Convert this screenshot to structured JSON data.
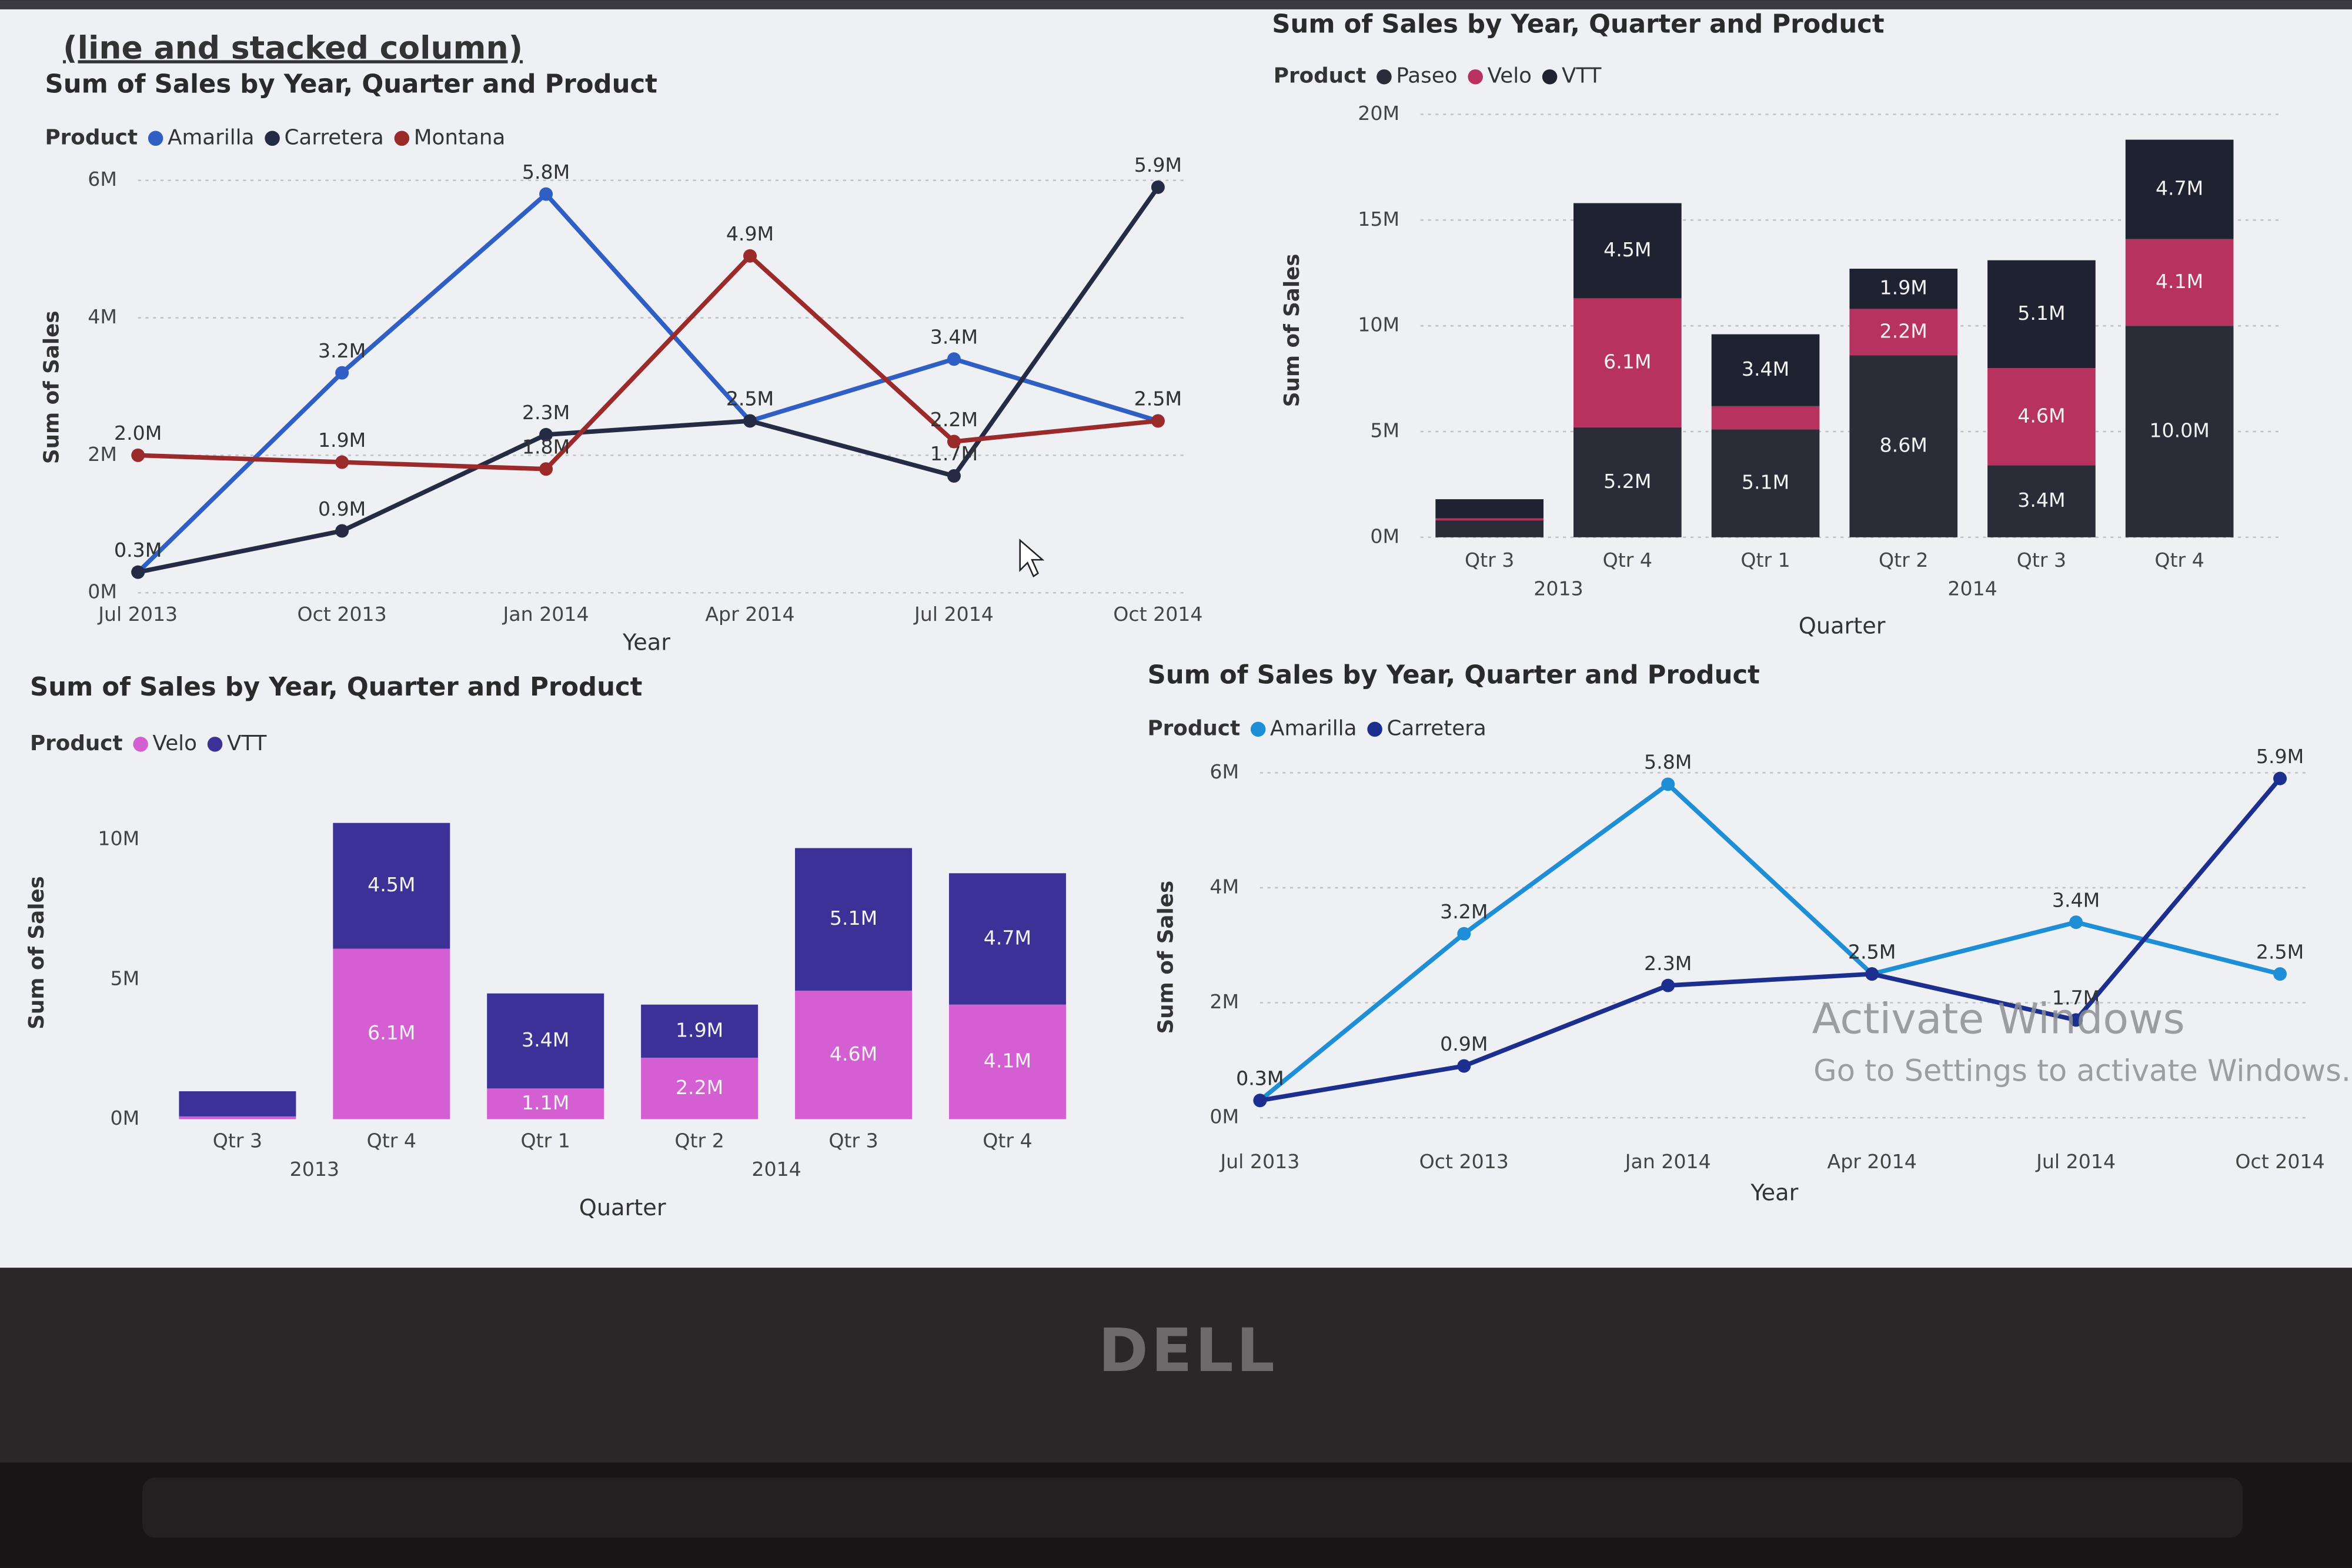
{
  "chart_data": [
    {
      "type": "line",
      "heading": "(line and stacked column)",
      "title": "Sum of Sales by Year, Quarter and Product",
      "legend_title": "Product",
      "y_axis_label": "Sum of Sales",
      "x_axis_label": "Year",
      "categories": [
        "Jul 2013",
        "Oct 2013",
        "Jan 2014",
        "Apr 2014",
        "Jul 2014",
        "Oct 2014"
      ],
      "series": [
        {
          "name": "Amarilla",
          "color": "#2f5fc4",
          "values": [
            0.3,
            3.2,
            5.8,
            2.5,
            3.4,
            2.5
          ],
          "value_labels": [
            "0.3M",
            "3.2M",
            "5.8M",
            "2.5M",
            "3.4M",
            "2.5M"
          ]
        },
        {
          "name": "Carretera",
          "color": "#262b45",
          "values": [
            0.3,
            0.9,
            2.3,
            2.5,
            1.7,
            5.9
          ],
          "value_labels": [
            "0.3M",
            "0.9M",
            "2.3M",
            "2.5M",
            "1.7M",
            "5.9M"
          ]
        },
        {
          "name": "Montana",
          "color": "#9b2a2a",
          "values": [
            2.0,
            1.9,
            1.8,
            4.9,
            2.2,
            2.5
          ],
          "value_labels": [
            "2.0M",
            "1.9M",
            "1.8M",
            "4.9M",
            "2.2M",
            "2.5M"
          ]
        }
      ],
      "ylim": [
        0,
        6
      ],
      "yticks": [
        {
          "value": 0,
          "label": "0M"
        },
        {
          "value": 2,
          "label": "2M"
        },
        {
          "value": 4,
          "label": "4M"
        },
        {
          "value": 6,
          "label": "6M"
        }
      ],
      "grid": true
    },
    {
      "type": "bar",
      "title": "Sum of Sales by Year, Quarter and Product",
      "legend_title": "Product",
      "y_axis_label": "Sum of Sales",
      "x_axis_label": "Quarter",
      "categories": [
        "Qtr 3",
        "Qtr 4",
        "Qtr 1",
        "Qtr 2",
        "Qtr 3",
        "Qtr 4"
      ],
      "category_groups": [
        "2013",
        "2013",
        "2014",
        "2014",
        "2014",
        "2014"
      ],
      "series": [
        {
          "name": "Paseo",
          "color": "#2a2c38",
          "values": [
            0.8,
            5.2,
            5.1,
            8.6,
            3.4,
            10.0
          ],
          "value_labels": [
            null,
            "5.2M",
            "5.1M",
            "8.6M",
            "3.4M",
            "10.0M"
          ]
        },
        {
          "name": "Velo",
          "color": "#b8325f",
          "values": [
            0.1,
            6.1,
            1.1,
            2.2,
            4.6,
            4.1
          ],
          "value_labels": [
            null,
            "6.1M",
            null,
            "2.2M",
            "4.6M",
            "4.1M"
          ]
        },
        {
          "name": "VTT",
          "color": "#1f2230",
          "values": [
            0.9,
            4.5,
            3.4,
            1.9,
            5.1,
            4.7
          ],
          "value_labels": [
            null,
            "4.5M",
            "3.4M",
            "1.9M",
            "5.1M",
            "4.7M"
          ]
        }
      ],
      "ylim": [
        0,
        20
      ],
      "yticks": [
        {
          "value": 0,
          "label": "0M"
        },
        {
          "value": 5,
          "label": "5M"
        },
        {
          "value": 10,
          "label": "10M"
        },
        {
          "value": 15,
          "label": "15M"
        },
        {
          "value": 20,
          "label": "20M"
        }
      ],
      "grid": true
    },
    {
      "type": "bar",
      "title": "Sum of Sales by Year, Quarter and Product",
      "legend_title": "Product",
      "y_axis_label": "Sum of Sales",
      "x_axis_label": "Quarter",
      "categories": [
        "Qtr 3",
        "Qtr 4",
        "Qtr 1",
        "Qtr 2",
        "Qtr 3",
        "Qtr 4"
      ],
      "category_groups": [
        "2013",
        "2013",
        "2014",
        "2014",
        "2014",
        "2014"
      ],
      "series": [
        {
          "name": "Velo",
          "color": "#d35fd3",
          "values": [
            0.1,
            6.1,
            1.1,
            2.2,
            4.6,
            4.1
          ],
          "value_labels": [
            null,
            "6.1M",
            "1.1M",
            "2.2M",
            "4.6M",
            "4.1M"
          ]
        },
        {
          "name": "VTT",
          "color": "#3b3196",
          "values": [
            0.9,
            4.5,
            3.4,
            1.9,
            5.1,
            4.7
          ],
          "value_labels": [
            null,
            "4.5M",
            "3.4M",
            "1.9M",
            "5.1M",
            "4.7M"
          ]
        }
      ],
      "ylim": [
        0,
        11
      ],
      "yticks": [
        {
          "value": 0,
          "label": "0M"
        },
        {
          "value": 5,
          "label": "5M"
        },
        {
          "value": 10,
          "label": "10M"
        }
      ],
      "grid": false
    },
    {
      "type": "line",
      "title": "Sum of Sales by Year, Quarter and Product",
      "legend_title": "Product",
      "y_axis_label": "Sum of Sales",
      "x_axis_label": "Year",
      "categories": [
        "Jul 2013",
        "Oct 2013",
        "Jan 2014",
        "Apr 2014",
        "Jul 2014",
        "Oct 2014"
      ],
      "series": [
        {
          "name": "Amarilla",
          "color": "#1e8fd6",
          "values": [
            0.3,
            3.2,
            5.8,
            2.5,
            3.4,
            2.5
          ],
          "value_labels": [
            "0.3M",
            "3.2M",
            "5.8M",
            "2.5M",
            "3.4M",
            "2.5M"
          ]
        },
        {
          "name": "Carretera",
          "color": "#1c2f8f",
          "values": [
            0.3,
            0.9,
            2.3,
            2.5,
            1.7,
            5.9
          ],
          "value_labels": [
            "0.3M",
            "0.9M",
            "2.3M",
            "2.5M",
            "1.7M",
            "5.9M"
          ]
        }
      ],
      "ylim": [
        0,
        6
      ],
      "yticks": [
        {
          "value": 0,
          "label": "0M"
        },
        {
          "value": 2,
          "label": "2M"
        },
        {
          "value": 4,
          "label": "4M"
        },
        {
          "value": 6,
          "label": "6M"
        }
      ],
      "grid": true
    }
  ],
  "watermark": {
    "title": "Activate Windows",
    "subtitle": "Go to Settings to activate Windows."
  },
  "logo": "DELL"
}
